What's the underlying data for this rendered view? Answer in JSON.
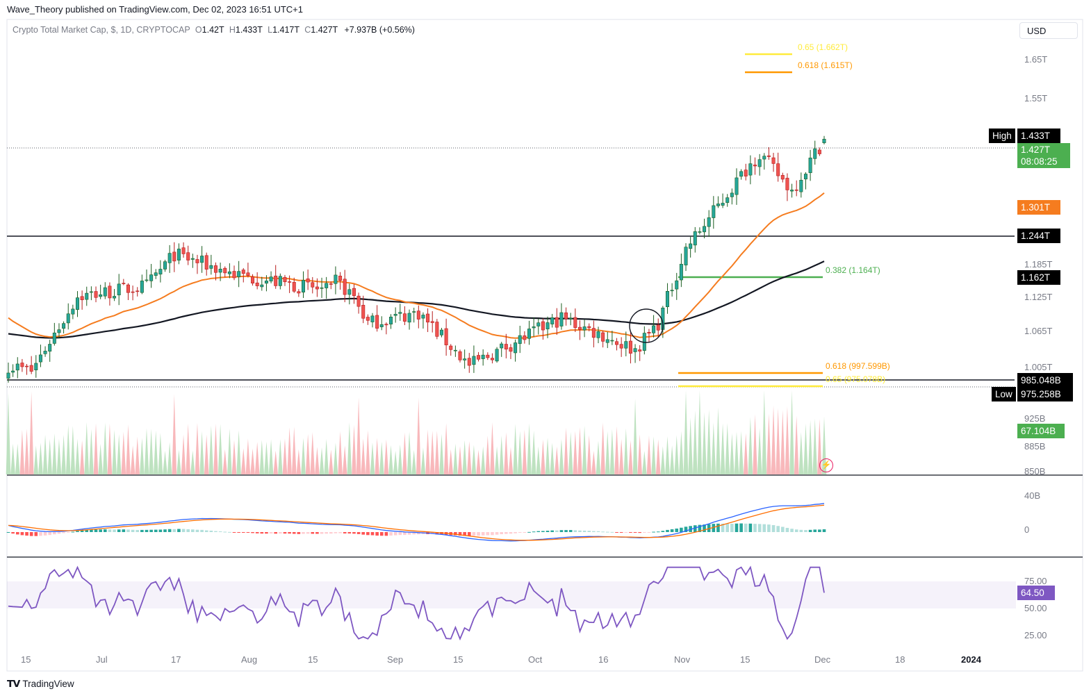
{
  "publisher": "Wave_Theory published on TradingView.com, Dec 02, 2023 16:51 UTC+1",
  "legend": {
    "symbol": "Crypto Total Market Cap, $, 1D, CRYPTOCAP",
    "o_label": "O",
    "o": "1.42T",
    "h_label": "H",
    "h": "1.433T",
    "l_label": "L",
    "l": "1.417T",
    "c_label": "C",
    "c": "1.427T",
    "change": "+7.937B (+0.56%)"
  },
  "currency": "USD",
  "brand": "TradingView",
  "colors": {
    "up": "#26a69a",
    "down": "#ef5350",
    "ema50": "#f57c1f",
    "ema200": "#131722",
    "fib_green": "#4caf50",
    "fib_orange": "#ff9800",
    "fib_yellow": "#ffeb3b",
    "macd": "#2962ff",
    "signal": "#ff6d00",
    "rsi": "#7e57c2"
  },
  "price_axis": [
    "1.65T",
    "1.55T",
    "1.185T",
    "1.125T",
    "1.065T",
    "1.005T",
    "925B",
    "885B",
    "850B"
  ],
  "price_tags": {
    "high_label": "High",
    "high": "1.433T",
    "last": "1.427T",
    "countdown": "08:08:25",
    "ema50": "1.301T",
    "resistance": "1.244T",
    "ema200": "1.162T",
    "support": "985.048B",
    "low_label": "Low",
    "low": "975.258B",
    "volume": "67.104B"
  },
  "fib_levels": [
    {
      "label": "0.65 (1.662T)",
      "color": "#ffeb3b"
    },
    {
      "label": "0.618 (1.615T)",
      "color": "#ff9800"
    },
    {
      "label": "0.382 (1.164T)",
      "color": "#4caf50"
    },
    {
      "label": "0.618 (997.599B)",
      "color": "#ff9800"
    },
    {
      "label": "0.65 (975.078B)",
      "color": "#ffeb3b"
    }
  ],
  "macd_axis": [
    "40B",
    "0"
  ],
  "rsi_axis": [
    "75.00",
    "50.00",
    "25.00"
  ],
  "rsi_tag": "64.50",
  "time_axis": [
    "15",
    "Jul",
    "17",
    "Aug",
    "15",
    "Sep",
    "15",
    "Oct",
    "16",
    "Nov",
    "15",
    "Dec",
    "18",
    "2024"
  ],
  "chart_data": {
    "type": "candlestick",
    "title": "Crypto Total Market Cap, $, 1D, CRYPTOCAP",
    "date_range": [
      "2023-06-08",
      "2023-12-02"
    ],
    "last_candle": {
      "date": "2023-12-02",
      "open": 1.42,
      "high": 1.433,
      "low": 1.417,
      "close": 1.427,
      "unit": "T"
    },
    "key_points": [
      {
        "date": "2023-06-10",
        "close": 0.99
      },
      {
        "date": "2023-06-21",
        "close": 1.13
      },
      {
        "date": "2023-07-14",
        "close": 1.21
      },
      {
        "date": "2023-08-17",
        "close": 1.08
      },
      {
        "date": "2023-08-29",
        "close": 1.1
      },
      {
        "date": "2023-09-11",
        "close": 1.0
      },
      {
        "date": "2023-10-02",
        "close": 1.09
      },
      {
        "date": "2023-10-11",
        "close": 1.03
      },
      {
        "date": "2023-10-24",
        "close": 1.22
      },
      {
        "date": "2023-11-09",
        "close": 1.4
      },
      {
        "date": "2023-11-21",
        "close": 1.33
      },
      {
        "date": "2023-12-02",
        "close": 1.427
      }
    ],
    "horizontal_levels": {
      "resistance": 1.244,
      "support": 0.985048,
      "high": 1.433,
      "low": 0.975258
    },
    "ema50_last": 1.301,
    "ema200_last": 1.162,
    "volume_last": "67.104B",
    "rsi_last": 64.5,
    "rsi_band": [
      25,
      75
    ]
  }
}
